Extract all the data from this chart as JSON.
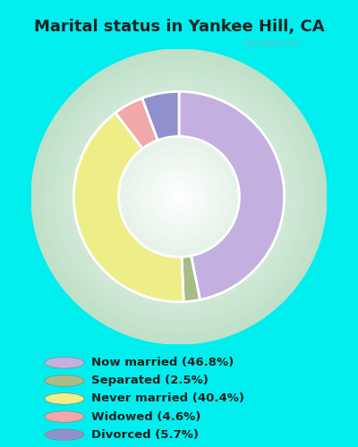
{
  "title": "Marital status in Yankee Hill, CA",
  "segments": [
    {
      "label": "Now married (46.8%)",
      "value": 46.8,
      "color": "#C4B0E0"
    },
    {
      "label": "Separated (2.5%)",
      "value": 2.5,
      "color": "#A8BC88"
    },
    {
      "label": "Never married (40.4%)",
      "value": 40.4,
      "color": "#EEEE88"
    },
    {
      "label": "Widowed (4.6%)",
      "value": 4.6,
      "color": "#F0A8A8"
    },
    {
      "label": "Divorced (5.7%)",
      "value": 5.7,
      "color": "#9090CC"
    }
  ],
  "bg_outer": "#00EEEE",
  "title_color": "#222222",
  "legend_text_color": "#222222",
  "watermark": "City-Data.com",
  "chart_bg_center": "#FFFFFF",
  "chart_bg_edge": "#C8E8D0",
  "donut_outer_r": 0.82,
  "donut_inner_r": 0.47,
  "start_angle": 90
}
